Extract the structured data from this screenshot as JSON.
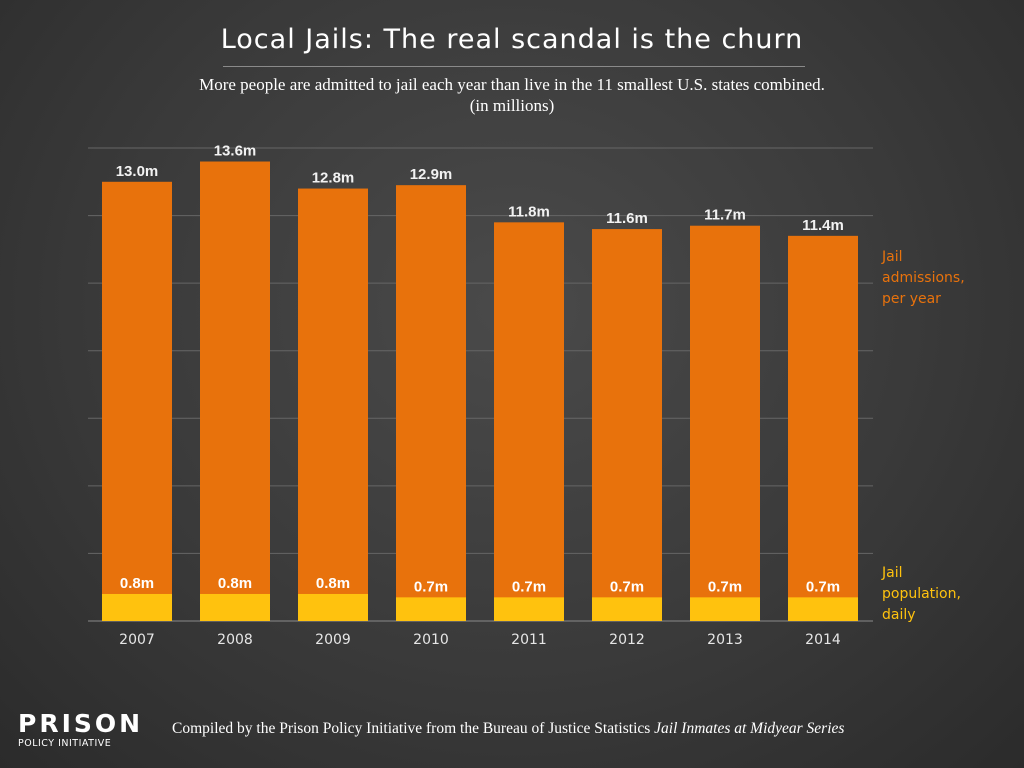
{
  "title": "Local Jails: The real scandal is the churn",
  "subtitle_line1": "More people are admitted to jail each year than live in the 11 smallest U.S. states combined.",
  "subtitle_line2": "(in millions)",
  "legend": {
    "admissions_line1": "Jail",
    "admissions_line2": "admissions,",
    "admissions_line3": "per year",
    "population_line1": "Jail",
    "population_line2": "population,",
    "population_line3": "daily"
  },
  "logo": {
    "word": "PRISON",
    "sub": "POLICY INITIATIVE"
  },
  "source": {
    "prefix": "Compiled by the Prison Policy Initiative from the Bureau of Justice Statistics ",
    "italic": "Jail Inmates at Midyear Series"
  },
  "colors": {
    "admissions": "#e8720c",
    "population": "#ffc20e",
    "grid": "#666666",
    "text": "#ffffff",
    "axis_text": "#e6e6e6"
  },
  "chart_data": {
    "type": "bar",
    "stacked": true,
    "categories": [
      "2007",
      "2008",
      "2009",
      "2010",
      "2011",
      "2012",
      "2013",
      "2014"
    ],
    "series": [
      {
        "name": "Jail population, daily",
        "values": [
          0.8,
          0.8,
          0.8,
          0.7,
          0.7,
          0.7,
          0.7,
          0.7
        ],
        "labels": [
          "0.8m",
          "0.8m",
          "0.8m",
          "0.7m",
          "0.7m",
          "0.7m",
          "0.7m",
          "0.7m"
        ],
        "color": "#ffc20e"
      },
      {
        "name": "Jail admissions, per year",
        "values": [
          13.0,
          13.6,
          12.8,
          12.9,
          11.8,
          11.6,
          11.7,
          11.4
        ],
        "labels": [
          "13.0m",
          "13.6m",
          "12.8m",
          "12.9m",
          "11.8m",
          "11.6m",
          "11.7m",
          "11.4m"
        ],
        "color": "#e8720c"
      }
    ],
    "ylim": [
      0,
      14
    ],
    "grid": true,
    "legend_position": "right"
  }
}
